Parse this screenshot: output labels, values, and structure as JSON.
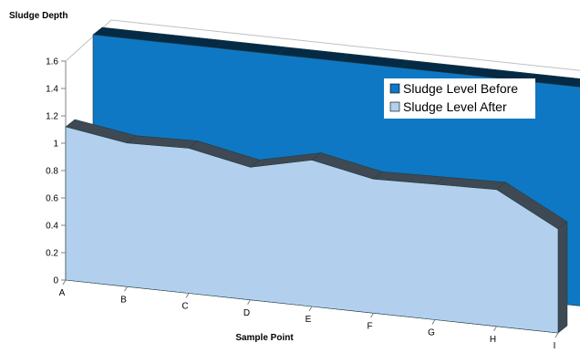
{
  "chart_data": {
    "type": "area",
    "style": "3d",
    "ylabel": "Sludge Depth",
    "xlabel": "Sample Point",
    "ylim": [
      0,
      1.6
    ],
    "yticks": [
      "0",
      "0.2",
      "0.4",
      "0.6",
      "0.8",
      "1",
      "1.2",
      "1.4",
      "1.6"
    ],
    "categories": [
      "A",
      "B",
      "C",
      "D",
      "E",
      "F",
      "G",
      "H",
      "I"
    ],
    "series": [
      {
        "name": "Sludge Level Before",
        "color": "#0f78c4",
        "values": [
          1.6,
          1.6,
          1.6,
          1.6,
          1.6,
          1.6,
          1.6,
          1.6,
          1.6
        ]
      },
      {
        "name": "Sludge Level After",
        "color": "#b2d0ee",
        "values": [
          1.12,
          1.05,
          1.06,
          0.97,
          1.07,
          0.98,
          0.99,
          1.0,
          0.76
        ]
      }
    ],
    "legend": "right",
    "grid": false
  }
}
